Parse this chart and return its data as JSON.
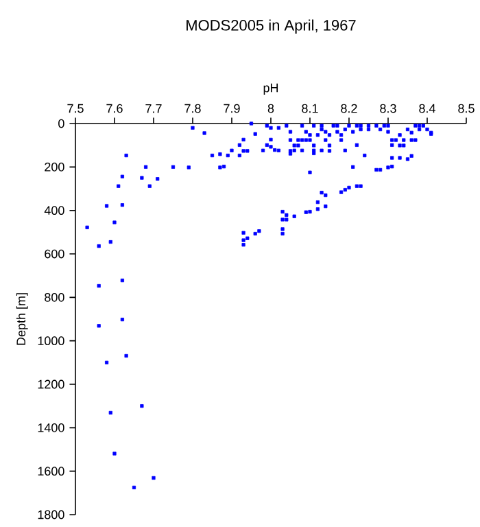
{
  "chart_data": {
    "type": "scatter",
    "title": "MODS2005 in April, 1967",
    "xlabel": "pH",
    "ylabel": "Depth [m]",
    "xlim": [
      7.5,
      8.5
    ],
    "ylim": [
      1800,
      0
    ],
    "xticks": [
      7.5,
      7.6,
      7.7,
      7.8,
      7.9,
      {
        "value": 8,
        "label": "8"
      },
      8.1,
      8.2,
      8.3,
      8.4,
      8.5
    ],
    "yticks": [
      0,
      200,
      400,
      600,
      800,
      1000,
      1200,
      1400,
      1600,
      1800
    ],
    "marker": "square",
    "series": [
      {
        "color": "#0000ff",
        "x": [
          7.53,
          7.56,
          7.59,
          7.6,
          7.58,
          7.62,
          7.61,
          7.62,
          7.63,
          7.62,
          7.56,
          7.67,
          7.68,
          7.69,
          7.71,
          7.75,
          7.79,
          7.8,
          7.83,
          7.85,
          7.87,
          7.88,
          7.87,
          7.89,
          7.9,
          7.92,
          7.92,
          7.93,
          7.93,
          7.94,
          7.95,
          7.96,
          7.98,
          7.99,
          8.0,
          8.0,
          8.01,
          8.02,
          7.99,
          8.0,
          8.02,
          7.93,
          7.93,
          7.93,
          7.94,
          7.96,
          7.97,
          8.03,
          8.03,
          8.03,
          8.03,
          8.04,
          8.04,
          8.06,
          8.09,
          8.1,
          8.12,
          8.12,
          8.14,
          8.13,
          8.14,
          8.18,
          8.19,
          8.2,
          8.22,
          8.23,
          8.21,
          8.1,
          8.24,
          8.22,
          8.27,
          8.28,
          8.3,
          8.31,
          8.31,
          8.33,
          8.35,
          8.36,
          8.31,
          8.31,
          8.32,
          8.33,
          8.34,
          8.34,
          8.36,
          8.37,
          8.33,
          8.35,
          8.36,
          8.38,
          8.39,
          8.4,
          8.41,
          8.41,
          8.38,
          8.37,
          8.04,
          8.05,
          8.05,
          8.05,
          8.05,
          8.06,
          8.07,
          8.07,
          8.08,
          8.08,
          8.09,
          8.1,
          8.1,
          8.11,
          8.11,
          8.12,
          8.13,
          8.13,
          8.14,
          8.14,
          8.15,
          8.15,
          8.16,
          8.17,
          8.17,
          8.18,
          8.18,
          8.19,
          8.2,
          8.21,
          8.22,
          8.23,
          8.23,
          8.25,
          8.25,
          8.27,
          8.28,
          8.29,
          8.3,
          8.3,
          8.06,
          8.08,
          8.11,
          8.13,
          8.15,
          8.19,
          8.09,
          8.11,
          7.56,
          7.62,
          7.58,
          7.63,
          7.59,
          7.67,
          7.6,
          7.7,
          7.65
        ],
        "values": [
          478,
          564,
          545,
          455,
          379,
          375,
          288,
          244,
          147,
          722,
          747,
          250,
          200,
          288,
          255,
          200,
          202,
          20,
          44,
          147,
          202,
          198,
          141,
          147,
          124,
          147,
          99,
          74,
          126,
          126,
          0,
          48,
          124,
          99,
          107,
          74,
          122,
          124,
          10,
          20,
          20,
          503,
          537,
          558,
          528,
          507,
          495,
          406,
          442,
          486,
          507,
          421,
          442,
          427,
          408,
          406,
          394,
          362,
          381,
          318,
          330,
          316,
          305,
          295,
          288,
          288,
          200,
          225,
          147,
          99,
          213,
          213,
          202,
          198,
          158,
          158,
          164,
          149,
          99,
          76,
          76,
          101,
          101,
          76,
          76,
          76,
          53,
          27,
          42,
          27,
          10,
          27,
          42,
          48,
          10,
          10,
          10,
          38,
          76,
          126,
          139,
          101,
          76,
          101,
          76,
          10,
          38,
          53,
          76,
          101,
          124,
          53,
          27,
          10,
          38,
          76,
          53,
          101,
          10,
          38,
          10,
          53,
          76,
          27,
          10,
          38,
          10,
          27,
          10,
          27,
          10,
          10,
          27,
          10,
          38,
          10,
          124,
          124,
          137,
          124,
          126,
          124,
          76,
          10,
          931,
          902,
          1100,
          1069,
          1331,
          1300,
          1519,
          1631,
          1675
        ]
      }
    ]
  }
}
